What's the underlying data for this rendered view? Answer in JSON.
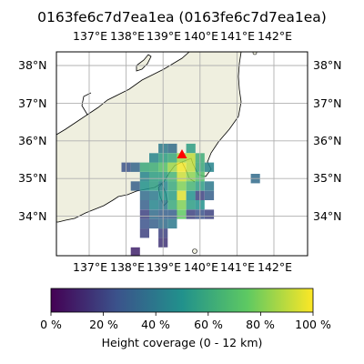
{
  "title": "0163fe6c7d7ea1ea (0163fe6c7d7ea1ea)",
  "lon_ticks": [
    "137°E",
    "138°E",
    "139°E",
    "140°E",
    "141°E",
    "142°E"
  ],
  "lat_ticks": [
    "38°N",
    "37°N",
    "36°N",
    "35°N",
    "34°N"
  ],
  "colorbar": {
    "colormap": "viridis",
    "ticks": [
      "0 %",
      "20 %",
      "40 %",
      "60 %",
      "80 %",
      "100 %"
    ],
    "label": "Height coverage (0 - 12 km)"
  },
  "map": {
    "land_color": "#efefdf",
    "ocean_color": "#ffffff",
    "grid": true,
    "marker": {
      "shape": "triangle",
      "color": "#ff0000"
    },
    "coverage_cells": [
      {
        "lon": 139.0,
        "lat": 35.8,
        "v": 0.4
      },
      {
        "lon": 139.25,
        "lat": 35.8,
        "v": 0.35
      },
      {
        "lon": 139.75,
        "lat": 35.8,
        "v": 0.55
      },
      {
        "lon": 138.75,
        "lat": 35.55,
        "v": 0.45
      },
      {
        "lon": 139.0,
        "lat": 35.55,
        "v": 0.55
      },
      {
        "lon": 139.25,
        "lat": 35.55,
        "v": 0.6
      },
      {
        "lon": 139.5,
        "lat": 35.55,
        "v": 0.85
      },
      {
        "lon": 139.75,
        "lat": 35.55,
        "v": 0.9
      },
      {
        "lon": 140.0,
        "lat": 35.55,
        "v": 0.62
      },
      {
        "lon": 138.0,
        "lat": 35.3,
        "v": 0.25
      },
      {
        "lon": 138.25,
        "lat": 35.3,
        "v": 0.32
      },
      {
        "lon": 138.5,
        "lat": 35.3,
        "v": 0.6
      },
      {
        "lon": 138.75,
        "lat": 35.3,
        "v": 0.62
      },
      {
        "lon": 139.0,
        "lat": 35.3,
        "v": 0.7
      },
      {
        "lon": 139.25,
        "lat": 35.3,
        "v": 0.85
      },
      {
        "lon": 139.5,
        "lat": 35.3,
        "v": 0.98
      },
      {
        "lon": 139.75,
        "lat": 35.3,
        "v": 0.9
      },
      {
        "lon": 140.0,
        "lat": 35.3,
        "v": 0.6
      },
      {
        "lon": 140.25,
        "lat": 35.3,
        "v": 0.45
      },
      {
        "lon": 138.5,
        "lat": 35.05,
        "v": 0.45
      },
      {
        "lon": 138.75,
        "lat": 35.05,
        "v": 0.55
      },
      {
        "lon": 139.0,
        "lat": 35.05,
        "v": 0.55
      },
      {
        "lon": 139.25,
        "lat": 35.05,
        "v": 0.65
      },
      {
        "lon": 139.5,
        "lat": 35.05,
        "v": 0.92
      },
      {
        "lon": 139.75,
        "lat": 35.05,
        "v": 0.82
      },
      {
        "lon": 140.0,
        "lat": 35.05,
        "v": 0.7
      },
      {
        "lon": 141.5,
        "lat": 35.0,
        "v": 0.35
      },
      {
        "lon": 138.25,
        "lat": 34.8,
        "v": 0.3
      },
      {
        "lon": 138.5,
        "lat": 34.8,
        "v": 0.5
      },
      {
        "lon": 138.75,
        "lat": 34.8,
        "v": 0.55
      },
      {
        "lon": 139.0,
        "lat": 34.8,
        "v": 0.45
      },
      {
        "lon": 139.25,
        "lat": 34.8,
        "v": 0.6
      },
      {
        "lon": 139.5,
        "lat": 34.8,
        "v": 0.8
      },
      {
        "lon": 139.75,
        "lat": 34.8,
        "v": 0.65
      },
      {
        "lon": 140.0,
        "lat": 34.8,
        "v": 0.55
      },
      {
        "lon": 140.25,
        "lat": 34.8,
        "v": 0.4
      },
      {
        "lon": 138.5,
        "lat": 34.55,
        "v": 0.35
      },
      {
        "lon": 138.75,
        "lat": 34.55,
        "v": 0.4
      },
      {
        "lon": 139.0,
        "lat": 34.55,
        "v": 0.5
      },
      {
        "lon": 139.25,
        "lat": 34.55,
        "v": 0.55
      },
      {
        "lon": 139.5,
        "lat": 34.55,
        "v": 0.95
      },
      {
        "lon": 139.75,
        "lat": 34.55,
        "v": 0.5
      },
      {
        "lon": 140.0,
        "lat": 34.55,
        "v": 0.2
      },
      {
        "lon": 140.25,
        "lat": 34.55,
        "v": 0.3
      },
      {
        "lon": 138.5,
        "lat": 34.3,
        "v": 0.3
      },
      {
        "lon": 138.75,
        "lat": 34.3,
        "v": 0.45
      },
      {
        "lon": 139.0,
        "lat": 34.3,
        "v": 0.4
      },
      {
        "lon": 139.25,
        "lat": 34.3,
        "v": 0.6
      },
      {
        "lon": 139.5,
        "lat": 34.3,
        "v": 0.8
      },
      {
        "lon": 139.75,
        "lat": 34.3,
        "v": 0.55
      },
      {
        "lon": 140.0,
        "lat": 34.3,
        "v": 0.5
      },
      {
        "lon": 138.5,
        "lat": 34.05,
        "v": 0.2
      },
      {
        "lon": 138.75,
        "lat": 34.05,
        "v": 0.35
      },
      {
        "lon": 139.0,
        "lat": 34.05,
        "v": 0.3
      },
      {
        "lon": 139.25,
        "lat": 34.05,
        "v": 0.3
      },
      {
        "lon": 139.5,
        "lat": 34.05,
        "v": 0.75
      },
      {
        "lon": 139.75,
        "lat": 34.05,
        "v": 0.2
      },
      {
        "lon": 140.0,
        "lat": 34.05,
        "v": 0.25
      },
      {
        "lon": 140.25,
        "lat": 34.05,
        "v": 0.2
      },
      {
        "lon": 138.5,
        "lat": 33.8,
        "v": 0.25
      },
      {
        "lon": 138.75,
        "lat": 33.8,
        "v": 0.3
      },
      {
        "lon": 139.0,
        "lat": 33.8,
        "v": 0.35
      },
      {
        "lon": 139.25,
        "lat": 33.8,
        "v": 0.4
      },
      {
        "lon": 138.5,
        "lat": 33.55,
        "v": 0.2
      },
      {
        "lon": 139.0,
        "lat": 33.55,
        "v": 0.2
      },
      {
        "lon": 139.0,
        "lat": 33.3,
        "v": 0.15
      },
      {
        "lon": 138.25,
        "lat": 33.05,
        "v": 0.1
      }
    ]
  }
}
